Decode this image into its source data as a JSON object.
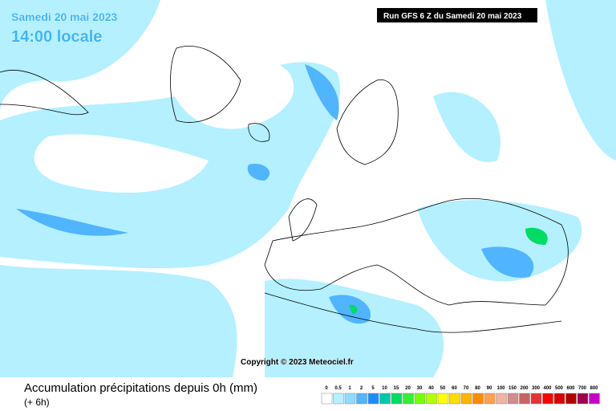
{
  "header": {
    "date": "Samedi 20 mai 2023",
    "time": "14:00 locale",
    "run": "Run GFS 6 Z du Samedi 20 mai 2023"
  },
  "copyright": "Copyright © 2023 Meteociel.fr",
  "footer": {
    "title": "Accumulation précipitations depuis 0h (mm)",
    "subtitle": "(+ 6h)"
  },
  "legend": {
    "items": [
      {
        "label": "0",
        "color": "#ffffff"
      },
      {
        "label": "0.5",
        "color": "#b4f0ff"
      },
      {
        "label": "1",
        "color": "#8cdcff"
      },
      {
        "label": "2",
        "color": "#50b4ff"
      },
      {
        "label": "5",
        "color": "#1e8cff"
      },
      {
        "label": "10",
        "color": "#00c8aa"
      },
      {
        "label": "15",
        "color": "#00dc64"
      },
      {
        "label": "20",
        "color": "#32f032"
      },
      {
        "label": "30",
        "color": "#78ff00"
      },
      {
        "label": "40",
        "color": "#b4ff00"
      },
      {
        "label": "50",
        "color": "#ffff00"
      },
      {
        "label": "60",
        "color": "#ffdc00"
      },
      {
        "label": "70",
        "color": "#ffb400"
      },
      {
        "label": "80",
        "color": "#ff8c00"
      },
      {
        "label": "90",
        "color": "#ffa050"
      },
      {
        "label": "100",
        "color": "#f0b4a0"
      },
      {
        "label": "150",
        "color": "#d28c8c"
      },
      {
        "label": "200",
        "color": "#c86464"
      },
      {
        "label": "300",
        "color": "#e63232"
      },
      {
        "label": "400",
        "color": "#ff0000"
      },
      {
        "label": "500",
        "color": "#dc0000"
      },
      {
        "label": "600",
        "color": "#b40000"
      },
      {
        "label": "700",
        "color": "#a00050"
      },
      {
        "label": "800",
        "color": "#c800c8"
      }
    ]
  }
}
